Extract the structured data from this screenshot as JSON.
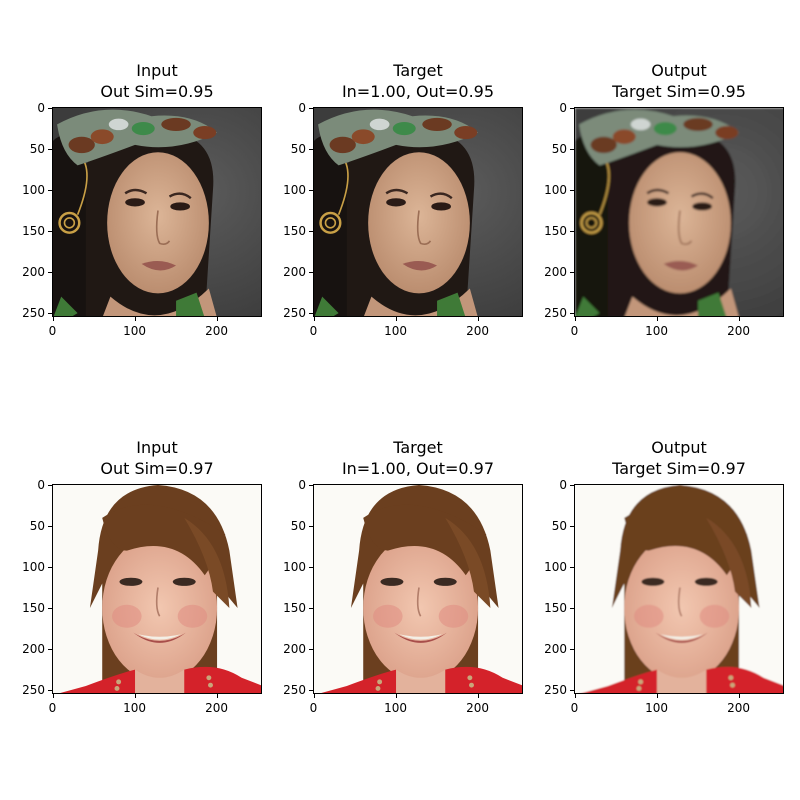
{
  "panels": [
    {
      "title_line1": "Input",
      "title_line2": "Out Sim=0.95",
      "scene": "face-a",
      "variant": "input"
    },
    {
      "title_line1": "Target",
      "title_line2": "In=1.00, Out=0.95",
      "scene": "face-a",
      "variant": "target"
    },
    {
      "title_line1": "Output",
      "title_line2": "Target Sim=0.95",
      "scene": "face-a",
      "variant": "output"
    },
    {
      "title_line1": "Input",
      "title_line2": "Out Sim=0.97",
      "scene": "face-b",
      "variant": "input"
    },
    {
      "title_line1": "Target",
      "title_line2": "In=1.00, Out=0.97",
      "scene": "face-b",
      "variant": "target"
    },
    {
      "title_line1": "Output",
      "title_line2": "Target Sim=0.97",
      "scene": "face-b",
      "variant": "output"
    }
  ],
  "axes": {
    "y_ticks": [
      "0",
      "50",
      "100",
      "150",
      "200",
      "250"
    ],
    "x_ticks": [
      "0",
      "100",
      "200"
    ]
  },
  "colors": {
    "face_a_background": "#4a4a4a",
    "face_a_skin": "#caa183",
    "face_a_hair": "#1a1412",
    "face_b_background": "#fbfaf6",
    "face_b_skin": "#e9b8a2",
    "face_b_hair": "#6b3f1f",
    "face_b_jacket": "#d4222a"
  }
}
